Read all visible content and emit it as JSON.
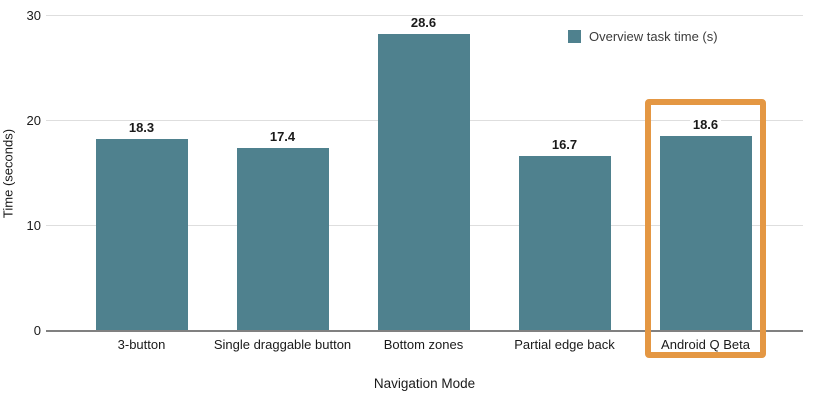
{
  "chart_data": {
    "type": "bar",
    "title": "",
    "categories": [
      "3-button",
      "Single draggable button",
      "Bottom zones",
      "Partial edge back",
      "Android Q Beta"
    ],
    "series": [
      {
        "name": "Overview task time (s)",
        "values": [
          18.3,
          17.4,
          28.6,
          16.7,
          18.6
        ],
        "color": "#4f818e"
      }
    ],
    "value_labels": [
      "18.3",
      "17.4",
      "28.6",
      "16.7",
      "18.6"
    ],
    "xlabel": "Navigation Mode",
    "ylabel": "Time (seconds)",
    "y_ticks": [
      0,
      10,
      20,
      30
    ],
    "y_tick_labels": [
      "0",
      "10",
      "20",
      "30"
    ],
    "ylim": [
      0,
      30
    ],
    "grid": true,
    "legend": {
      "position": "top-right",
      "label": "Overview task time (s)"
    },
    "highlight": {
      "category": "Android Q Beta",
      "color": "#e49743",
      "shape": "rectangle-outline"
    }
  }
}
